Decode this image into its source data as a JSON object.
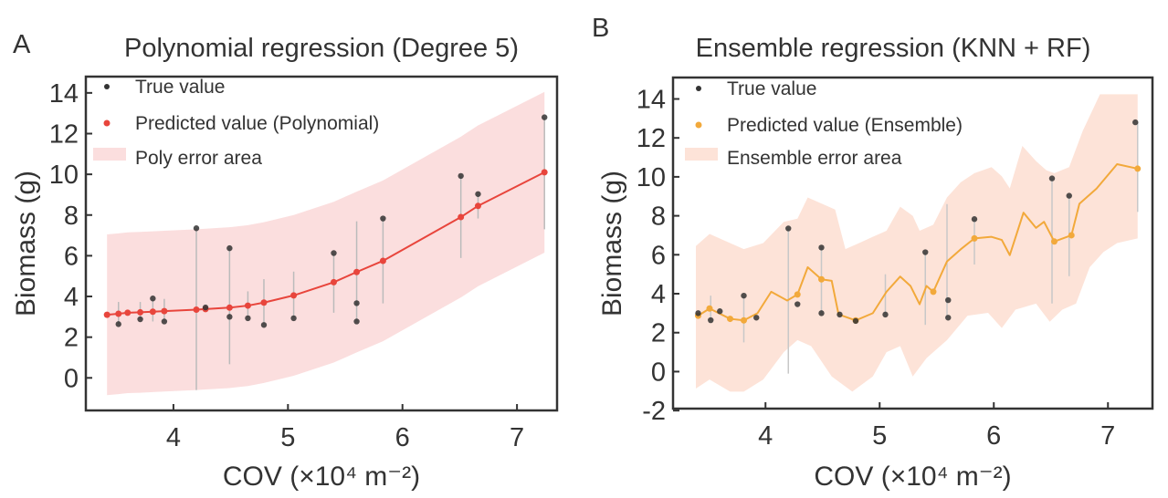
{
  "chart_data": [
    {
      "panel_letter": "A",
      "type": "line",
      "title": "Polynomial regression (Degree 5)",
      "xlabel": "COV (×10⁴ m⁻²)",
      "ylabel": "Biomass (g)",
      "xlim": [
        3.235,
        7.35
      ],
      "ylim": [
        -1.6,
        14.8
      ],
      "xticks": [
        4,
        5,
        6,
        7
      ],
      "yticks": [
        0,
        2,
        4,
        6,
        8,
        10,
        12,
        14
      ],
      "colors": {
        "pred": "#e8453c",
        "band": "#fbdede",
        "true": "#333333",
        "errbar": "#bbbbbb"
      },
      "legend": [
        "True value",
        "Predicted value (Polynomial)",
        "Poly error area"
      ],
      "true_values": {
        "x": [
          3.52,
          3.71,
          3.82,
          3.92,
          4.2,
          4.28,
          4.49,
          4.49,
          4.65,
          4.79,
          5.05,
          5.4,
          5.6,
          5.6,
          5.83,
          6.51,
          6.66,
          7.24
        ],
        "y": [
          2.64,
          2.88,
          3.9,
          2.77,
          7.35,
          3.46,
          6.37,
          3.0,
          2.93,
          2.6,
          2.93,
          6.13,
          3.67,
          2.77,
          7.83,
          9.92,
          9.03,
          12.8
        ]
      },
      "error_bars": {
        "x": [
          3.52,
          3.71,
          3.82,
          3.92,
          4.2,
          4.49,
          4.65,
          4.79,
          5.05,
          5.4,
          5.6,
          5.83,
          6.51,
          6.66,
          7.24
        ],
        "low": [
          2.64,
          2.88,
          2.77,
          2.77,
          -0.6,
          0.67,
          2.93,
          2.6,
          2.93,
          3.2,
          2.77,
          3.66,
          5.89,
          7.83,
          7.3
        ],
        "high": [
          3.73,
          3.73,
          3.88,
          3.88,
          7.35,
          6.37,
          4.25,
          4.85,
          5.22,
          6.13,
          7.69,
          7.83,
          9.92,
          9.03,
          12.8
        ]
      },
      "predicted": {
        "x": [
          3.42,
          3.52,
          3.6,
          3.71,
          3.82,
          3.92,
          4.2,
          4.28,
          4.49,
          4.65,
          4.79,
          5.05,
          5.4,
          5.6,
          5.83,
          6.51,
          6.66,
          7.24
        ],
        "y": [
          3.1,
          3.15,
          3.2,
          3.22,
          3.25,
          3.28,
          3.35,
          3.38,
          3.45,
          3.55,
          3.7,
          4.05,
          4.7,
          5.2,
          5.75,
          7.9,
          8.45,
          10.1
        ]
      },
      "band_halfwidth": 3.95
    },
    {
      "panel_letter": "B",
      "type": "line",
      "title": "Ensemble regression (KNN + RF)",
      "xlabel": "COV (×10⁴ m⁻²)",
      "ylabel": "Biomass (g)",
      "xlim": [
        3.19,
        7.39
      ],
      "ylim": [
        -1.9,
        15.1
      ],
      "xticks": [
        4,
        5,
        6,
        7
      ],
      "yticks": [
        -2,
        0,
        2,
        4,
        6,
        8,
        10,
        12,
        14
      ],
      "colors": {
        "pred": "#f2a93b",
        "band": "#fde3d8",
        "true": "#333333",
        "errbar": "#c8c8c8"
      },
      "legend": [
        "True value",
        "Predicted value (Ensemble)",
        "Ensemble error area"
      ],
      "true_values": {
        "x": [
          3.41,
          3.52,
          3.6,
          3.81,
          3.92,
          4.2,
          4.28,
          4.49,
          4.49,
          4.65,
          4.79,
          5.05,
          5.4,
          5.6,
          5.6,
          5.83,
          6.51,
          6.66,
          7.24
        ],
        "y": [
          3.0,
          2.64,
          3.1,
          3.9,
          2.77,
          7.35,
          3.46,
          6.37,
          3.0,
          2.93,
          2.6,
          2.93,
          6.13,
          3.67,
          2.77,
          7.83,
          9.92,
          9.03,
          12.8
        ]
      },
      "error_bars": {
        "x": [
          3.52,
          3.81,
          4.2,
          4.49,
          5.05,
          5.4,
          5.59,
          5.83,
          6.51,
          6.66,
          7.26
        ],
        "low": [
          2.64,
          1.5,
          -0.1,
          3.0,
          2.93,
          2.4,
          2.77,
          5.5,
          3.5,
          4.9,
          8.2
        ],
        "high": [
          3.9,
          3.9,
          7.35,
          6.37,
          5.0,
          6.13,
          8.6,
          7.83,
          9.92,
          9.03,
          12.8
        ]
      },
      "predicted": {
        "x": [
          3.41,
          3.51,
          3.69,
          3.81,
          3.93,
          4.05,
          4.19,
          4.28,
          4.37,
          4.49,
          4.58,
          4.64,
          4.79,
          4.94,
          5.06,
          5.18,
          5.27,
          5.35,
          5.41,
          5.47,
          5.59,
          5.71,
          5.83,
          5.98,
          6.07,
          6.14,
          6.26,
          6.37,
          6.44,
          6.53,
          6.68,
          6.75,
          6.9,
          7.08,
          7.26
        ],
        "y": [
          2.87,
          3.24,
          2.71,
          2.63,
          3.0,
          4.1,
          3.65,
          3.96,
          5.36,
          4.74,
          4.66,
          2.94,
          2.63,
          3.0,
          4.1,
          4.88,
          4.4,
          3.46,
          4.4,
          4.1,
          5.66,
          6.28,
          6.84,
          6.92,
          6.76,
          5.98,
          8.16,
          7.38,
          7.69,
          6.68,
          7.0,
          8.62,
          9.4,
          10.65,
          10.42
        ]
      },
      "band_upper": {
        "x": [
          3.39,
          3.51,
          3.69,
          3.81,
          3.98,
          4.16,
          4.28,
          4.37,
          4.49,
          4.61,
          4.7,
          4.82,
          4.94,
          5.06,
          5.18,
          5.29,
          5.35,
          5.47,
          5.59,
          5.71,
          5.83,
          5.98,
          6.07,
          6.14,
          6.25,
          6.37,
          6.46,
          6.53,
          6.66,
          6.78,
          6.93,
          7.08,
          7.26
        ],
        "y": [
          6.45,
          7.07,
          6.6,
          6.29,
          6.6,
          7.69,
          7.85,
          8.94,
          8.63,
          8.32,
          6.29,
          6.6,
          6.92,
          7.23,
          8.47,
          8.0,
          7.23,
          7.54,
          8.94,
          9.72,
          10.19,
          10.5,
          10.03,
          9.41,
          11.59,
          10.81,
          10.34,
          10.19,
          10.5,
          12.37,
          14.24,
          14.24,
          14.24
        ]
      },
      "band_lower": {
        "x": [
          3.39,
          3.51,
          3.69,
          3.81,
          3.98,
          4.16,
          4.28,
          4.4,
          4.58,
          4.76,
          4.94,
          5.06,
          5.18,
          5.29,
          5.41,
          5.59,
          5.77,
          5.95,
          6.07,
          6.19,
          6.37,
          6.49,
          6.6,
          6.72,
          6.84,
          6.96,
          7.08,
          7.26
        ],
        "y": [
          -0.87,
          -0.41,
          -1.03,
          -1.03,
          -0.41,
          1.0,
          1.62,
          1.31,
          -0.25,
          -1.03,
          -0.25,
          1.0,
          1.31,
          -0.25,
          0.69,
          1.62,
          2.87,
          3.02,
          2.24,
          3.18,
          3.49,
          2.56,
          3.18,
          3.49,
          5.36,
          6.14,
          6.6,
          6.84
        ]
      }
    }
  ]
}
